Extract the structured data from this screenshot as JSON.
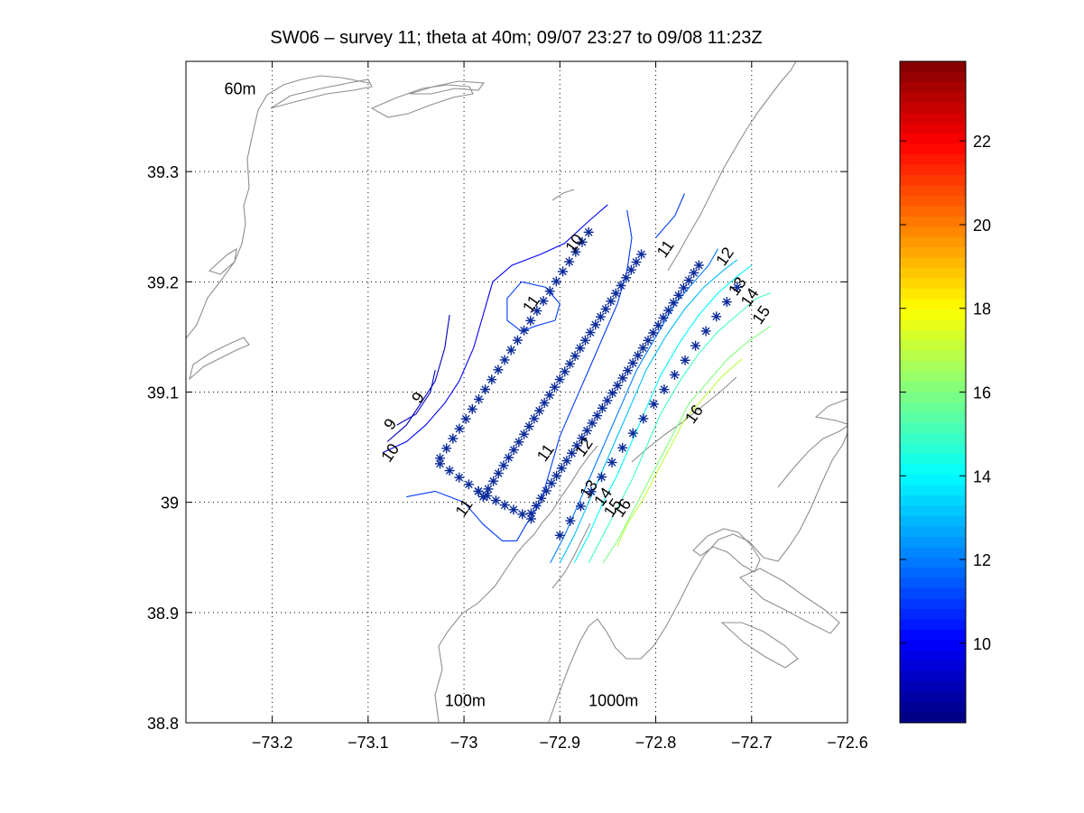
{
  "chart_data": {
    "type": "contour",
    "title": "SW06 – survey 11; theta at 40m; 09/07 23:27 to 09/08 11:23Z",
    "xlabel": "",
    "ylabel": "",
    "xlim": [
      -73.29,
      -72.6
    ],
    "ylim": [
      38.8,
      39.4
    ],
    "grid": true,
    "x_ticks": [
      "−73.2",
      "−73.1",
      "−73",
      "−72.9",
      "−72.8",
      "−72.7",
      "−72.6"
    ],
    "x_tick_values": [
      -73.2,
      -73.1,
      -73.0,
      -72.9,
      -72.8,
      -72.7,
      -72.6
    ],
    "y_ticks": [
      "38.8",
      "38.9",
      "39",
      "39.1",
      "39.2",
      "39.3"
    ],
    "y_tick_values": [
      38.8,
      38.9,
      39.0,
      39.1,
      39.2,
      39.3
    ],
    "colorbar": {
      "range": [
        8.1,
        23.9
      ],
      "ticks": [
        "10",
        "12",
        "14",
        "16",
        "18",
        "20",
        "22"
      ],
      "tick_values": [
        10,
        12,
        14,
        16,
        18,
        20,
        22
      ],
      "colormap": "jet"
    },
    "isobath_labels": [
      {
        "text": "60m",
        "x": -73.25,
        "y": 39.37
      },
      {
        "text": "100m",
        "x": -73.02,
        "y": 38.815
      },
      {
        "text": "1000m",
        "x": -72.87,
        "y": 38.815
      }
    ],
    "contour_labels": [
      {
        "text": "10",
        "x": -72.885,
        "y": 39.235,
        "level": 10
      },
      {
        "text": "11",
        "x": -72.93,
        "y": 39.18,
        "level": 11
      },
      {
        "text": "11",
        "x": -72.79,
        "y": 39.23,
        "level": 11
      },
      {
        "text": "12",
        "x": -72.728,
        "y": 39.223,
        "level": 12
      },
      {
        "text": "13",
        "x": -72.715,
        "y": 39.196,
        "level": 13
      },
      {
        "text": "14",
        "x": -72.702,
        "y": 39.186,
        "level": 14
      },
      {
        "text": "15",
        "x": -72.69,
        "y": 39.17,
        "level": 15
      },
      {
        "text": "16",
        "x": -72.76,
        "y": 39.08,
        "level": 16
      },
      {
        "text": "9",
        "x": -73.077,
        "y": 39.071,
        "level": 9
      },
      {
        "text": "9",
        "x": -73.048,
        "y": 39.095,
        "level": 9
      },
      {
        "text": "10",
        "x": -73.077,
        "y": 39.045,
        "level": 10
      },
      {
        "text": "11",
        "x": -73.0,
        "y": 38.995,
        "level": 11
      },
      {
        "text": "11",
        "x": -72.915,
        "y": 39.045,
        "level": 11
      },
      {
        "text": "12",
        "x": -72.875,
        "y": 39.05,
        "level": 12
      },
      {
        "text": "13",
        "x": -72.87,
        "y": 39.012,
        "level": 13
      },
      {
        "text": "14",
        "x": -72.855,
        "y": 39.005,
        "level": 14
      },
      {
        "text": "15",
        "x": -72.845,
        "y": 38.995,
        "level": 15
      },
      {
        "text": "16",
        "x": -72.835,
        "y": 38.995,
        "level": 16
      }
    ],
    "station_lines": [
      {
        "name": "",
        "from": [
          -73.025,
          39.04
        ],
        "to": [
          -72.87,
          39.245
        ],
        "n": 24
      },
      {
        "name": "",
        "from": [
          -73.025,
          39.035
        ],
        "to": [
          -72.985,
          39.01
        ],
        "n": 5
      },
      {
        "name": "",
        "from": [
          -72.985,
          39.01
        ],
        "to": [
          -72.93,
          38.985
        ],
        "n": 7
      },
      {
        "name": "",
        "from": [
          -72.98,
          39.005
        ],
        "to": [
          -72.815,
          39.225
        ],
        "n": 32
      },
      {
        "name": "",
        "from": [
          -72.93,
          38.99
        ],
        "to": [
          -72.755,
          39.215
        ],
        "n": 34
      },
      {
        "name": "",
        "from": [
          -72.9,
          38.97
        ],
        "to": [
          -72.715,
          39.195
        ],
        "n": 18
      }
    ],
    "isotherms": [
      {
        "level": 9,
        "points": [
          [
            -73.07,
            39.07
          ],
          [
            -73.05,
            39.08
          ],
          [
            -73.035,
            39.1
          ],
          [
            -73.03,
            39.12
          ]
        ]
      },
      {
        "level": 9,
        "points": [
          [
            -73.08,
            39.055
          ],
          [
            -73.06,
            39.07
          ],
          [
            -73.045,
            39.09
          ],
          [
            -73.03,
            39.11
          ],
          [
            -73.02,
            39.14
          ],
          [
            -73.015,
            39.17
          ]
        ]
      },
      {
        "level": 10,
        "points": [
          [
            -73.085,
            39.045
          ],
          [
            -73.06,
            39.055
          ],
          [
            -73.04,
            39.07
          ],
          [
            -73.02,
            39.09
          ],
          [
            -73.005,
            39.11
          ],
          [
            -72.99,
            39.14
          ],
          [
            -72.98,
            39.17
          ],
          [
            -72.97,
            39.2
          ],
          [
            -72.95,
            39.215
          ],
          [
            -72.92,
            39.225
          ],
          [
            -72.895,
            39.235
          ],
          [
            -72.87,
            39.255
          ],
          [
            -72.85,
            39.27
          ]
        ]
      },
      {
        "level": 11,
        "points": [
          [
            -73.06,
            39.005
          ],
          [
            -73.03,
            39.01
          ],
          [
            -73.0,
            39.0
          ],
          [
            -72.98,
            38.98
          ],
          [
            -72.96,
            38.965
          ],
          [
            -72.945,
            38.965
          ],
          [
            -72.935,
            38.98
          ],
          [
            -72.92,
            39.0
          ],
          [
            -72.91,
            39.03
          ],
          [
            -72.9,
            39.06
          ],
          [
            -72.885,
            39.09
          ],
          [
            -72.87,
            39.12
          ],
          [
            -72.855,
            39.15
          ],
          [
            -72.84,
            39.18
          ],
          [
            -72.83,
            39.21
          ],
          [
            -72.825,
            39.24
          ],
          [
            -72.83,
            39.265
          ]
        ]
      },
      {
        "level": 11,
        "points": [
          [
            -72.925,
            39.16
          ],
          [
            -72.905,
            39.165
          ],
          [
            -72.9,
            39.18
          ],
          [
            -72.915,
            39.195
          ],
          [
            -72.94,
            39.2
          ],
          [
            -72.955,
            39.185
          ],
          [
            -72.955,
            39.165
          ],
          [
            -72.94,
            39.155
          ],
          [
            -72.925,
            39.16
          ]
        ]
      },
      {
        "level": 11,
        "points": [
          [
            -72.8,
            39.24
          ],
          [
            -72.78,
            39.26
          ],
          [
            -72.77,
            39.28
          ]
        ]
      },
      {
        "level": 12,
        "points": [
          [
            -72.91,
            38.945
          ],
          [
            -72.895,
            38.97
          ],
          [
            -72.88,
            39.0
          ],
          [
            -72.865,
            39.03
          ],
          [
            -72.85,
            39.06
          ],
          [
            -72.835,
            39.09
          ],
          [
            -72.82,
            39.12
          ],
          [
            -72.8,
            39.15
          ],
          [
            -72.78,
            39.18
          ],
          [
            -72.76,
            39.2
          ],
          [
            -72.745,
            39.215
          ],
          [
            -72.735,
            39.23
          ]
        ]
      },
      {
        "level": 13,
        "points": [
          [
            -72.9,
            38.945
          ],
          [
            -72.885,
            38.97
          ],
          [
            -72.87,
            39.0
          ],
          [
            -72.855,
            39.03
          ],
          [
            -72.84,
            39.06
          ],
          [
            -72.825,
            39.09
          ],
          [
            -72.81,
            39.12
          ],
          [
            -72.79,
            39.15
          ],
          [
            -72.77,
            39.175
          ],
          [
            -72.75,
            39.195
          ],
          [
            -72.73,
            39.21
          ],
          [
            -72.715,
            39.22
          ]
        ]
      },
      {
        "level": 14,
        "points": [
          [
            -72.885,
            38.945
          ],
          [
            -72.87,
            38.97
          ],
          [
            -72.855,
            39.0
          ],
          [
            -72.84,
            39.025
          ],
          [
            -72.825,
            39.055
          ],
          [
            -72.81,
            39.085
          ],
          [
            -72.795,
            39.115
          ],
          [
            -72.775,
            39.145
          ],
          [
            -72.755,
            39.17
          ],
          [
            -72.735,
            39.19
          ],
          [
            -72.715,
            39.205
          ],
          [
            -72.7,
            39.215
          ]
        ]
      },
      {
        "level": 15,
        "points": [
          [
            -72.87,
            38.945
          ],
          [
            -72.855,
            38.97
          ],
          [
            -72.84,
            38.995
          ],
          [
            -72.825,
            39.02
          ],
          [
            -72.81,
            39.05
          ],
          [
            -72.795,
            39.08
          ],
          [
            -72.775,
            39.11
          ],
          [
            -72.755,
            39.135
          ],
          [
            -72.735,
            39.155
          ],
          [
            -72.715,
            39.17
          ],
          [
            -72.695,
            39.185
          ],
          [
            -72.68,
            39.19
          ]
        ]
      },
      {
        "level": 16,
        "points": [
          [
            -72.855,
            38.945
          ],
          [
            -72.84,
            38.965
          ],
          [
            -72.825,
            38.99
          ],
          [
            -72.81,
            39.015
          ],
          [
            -72.795,
            39.04
          ],
          [
            -72.78,
            39.065
          ],
          [
            -72.765,
            39.09
          ],
          [
            -72.745,
            39.11
          ],
          [
            -72.725,
            39.13
          ],
          [
            -72.705,
            39.145
          ],
          [
            -72.68,
            39.16
          ]
        ]
      },
      {
        "level": 17,
        "points": [
          [
            -72.84,
            38.96
          ],
          [
            -72.83,
            38.98
          ],
          [
            -72.815,
            39.0
          ],
          [
            -72.8,
            39.025
          ],
          [
            -72.785,
            39.05
          ],
          [
            -72.77,
            39.075
          ],
          [
            -72.75,
            39.095
          ],
          [
            -72.73,
            39.115
          ],
          [
            -72.71,
            39.13
          ]
        ]
      }
    ]
  }
}
